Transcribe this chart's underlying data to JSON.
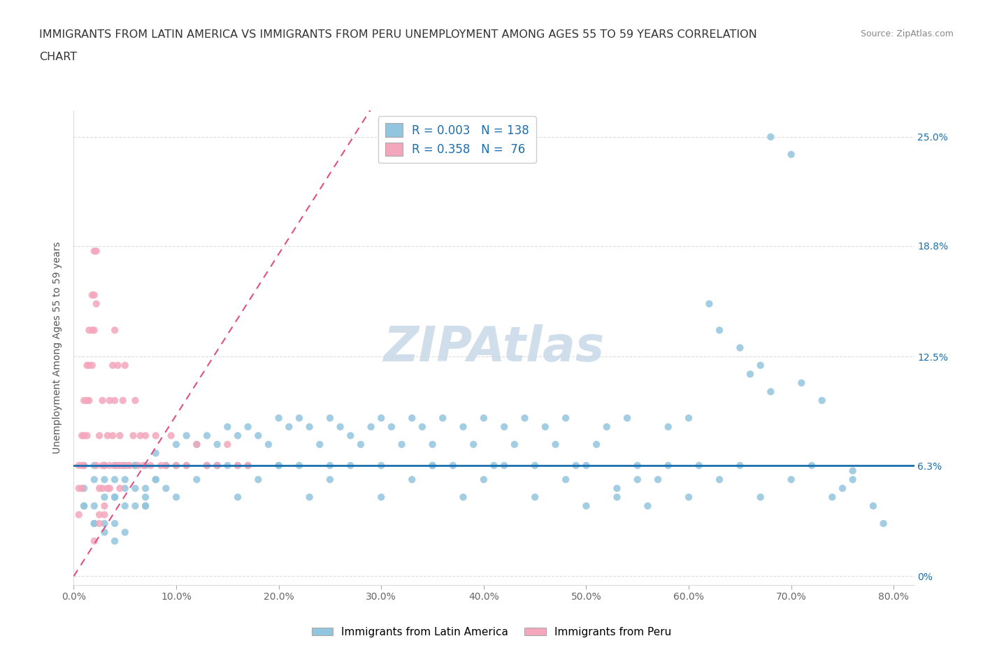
{
  "title_line1": "IMMIGRANTS FROM LATIN AMERICA VS IMMIGRANTS FROM PERU UNEMPLOYMENT AMONG AGES 55 TO 59 YEARS CORRELATION",
  "title_line2": "CHART",
  "source_text": "Source: ZipAtlas.com",
  "ylabel": "Unemployment Among Ages 55 to 59 years",
  "xlim": [
    0.0,
    0.82
  ],
  "ylim": [
    -0.005,
    0.265
  ],
  "yticks": [
    0.0,
    0.063,
    0.125,
    0.188,
    0.25
  ],
  "ytick_labels": [
    "0%",
    "6.3%",
    "12.5%",
    "18.8%",
    "25.0%"
  ],
  "xticks": [
    0.0,
    0.1,
    0.2,
    0.3,
    0.4,
    0.5,
    0.6,
    0.7,
    0.8
  ],
  "xtick_labels": [
    "0.0%",
    "10.0%",
    "20.0%",
    "30.0%",
    "40.0%",
    "50.0%",
    "60.0%",
    "70.0%",
    "80.0%"
  ],
  "color_blue": "#92c5de",
  "color_pink": "#f4a6bc",
  "color_line_blue": "#1a6faf",
  "color_line_pink": "#e05080",
  "legend_R1": "0.003",
  "legend_N1": "138",
  "legend_R2": "0.358",
  "legend_N2": "76",
  "watermark": "ZIPAtlas",
  "watermark_color": "#c8d8e8",
  "blue_line_y": 0.063,
  "pink_line_x0": 0.0,
  "pink_line_y0": 0.0,
  "pink_line_x1": 0.18,
  "pink_line_y1": 0.165,
  "blue_scatter_x": [
    0.01,
    0.01,
    0.01,
    0.02,
    0.02,
    0.02,
    0.02,
    0.03,
    0.03,
    0.03,
    0.03,
    0.04,
    0.04,
    0.04,
    0.04,
    0.05,
    0.05,
    0.05,
    0.06,
    0.06,
    0.06,
    0.07,
    0.07,
    0.07,
    0.08,
    0.08,
    0.09,
    0.09,
    0.1,
    0.1,
    0.11,
    0.11,
    0.12,
    0.13,
    0.13,
    0.14,
    0.14,
    0.15,
    0.15,
    0.16,
    0.16,
    0.17,
    0.17,
    0.18,
    0.19,
    0.2,
    0.2,
    0.21,
    0.22,
    0.22,
    0.23,
    0.24,
    0.25,
    0.25,
    0.26,
    0.27,
    0.28,
    0.29,
    0.3,
    0.3,
    0.31,
    0.32,
    0.33,
    0.34,
    0.35,
    0.35,
    0.36,
    0.37,
    0.38,
    0.39,
    0.4,
    0.41,
    0.42,
    0.43,
    0.44,
    0.45,
    0.46,
    0.47,
    0.48,
    0.49,
    0.5,
    0.51,
    0.52,
    0.53,
    0.54,
    0.55,
    0.56,
    0.57,
    0.58,
    0.6,
    0.61,
    0.62,
    0.63,
    0.65,
    0.67,
    0.68,
    0.7,
    0.71,
    0.73,
    0.75,
    0.76,
    0.78,
    0.79,
    0.01,
    0.02,
    0.03,
    0.04,
    0.05,
    0.06,
    0.07,
    0.03,
    0.04,
    0.05,
    0.06,
    0.07,
    0.08,
    0.09,
    0.1,
    0.12,
    0.14,
    0.16,
    0.18,
    0.2,
    0.23,
    0.25,
    0.27,
    0.3,
    0.33,
    0.35,
    0.38,
    0.4,
    0.42,
    0.45,
    0.48,
    0.5,
    0.53,
    0.55,
    0.58,
    0.6,
    0.63,
    0.65,
    0.67,
    0.7,
    0.72,
    0.74,
    0.76,
    0.66,
    0.68
  ],
  "blue_scatter_y": [
    0.063,
    0.05,
    0.04,
    0.063,
    0.055,
    0.04,
    0.03,
    0.063,
    0.055,
    0.045,
    0.03,
    0.063,
    0.055,
    0.045,
    0.03,
    0.063,
    0.05,
    0.04,
    0.063,
    0.05,
    0.04,
    0.063,
    0.05,
    0.04,
    0.07,
    0.055,
    0.063,
    0.05,
    0.075,
    0.063,
    0.08,
    0.063,
    0.075,
    0.08,
    0.063,
    0.075,
    0.063,
    0.085,
    0.063,
    0.08,
    0.063,
    0.085,
    0.063,
    0.08,
    0.075,
    0.09,
    0.063,
    0.085,
    0.09,
    0.063,
    0.085,
    0.075,
    0.09,
    0.063,
    0.085,
    0.08,
    0.075,
    0.085,
    0.09,
    0.063,
    0.085,
    0.075,
    0.09,
    0.085,
    0.063,
    0.075,
    0.09,
    0.063,
    0.085,
    0.075,
    0.09,
    0.063,
    0.085,
    0.075,
    0.09,
    0.063,
    0.085,
    0.075,
    0.09,
    0.063,
    0.04,
    0.075,
    0.085,
    0.05,
    0.09,
    0.063,
    0.04,
    0.055,
    0.085,
    0.09,
    0.063,
    0.155,
    0.14,
    0.13,
    0.12,
    0.25,
    0.24,
    0.11,
    0.1,
    0.05,
    0.06,
    0.04,
    0.03,
    0.04,
    0.03,
    0.025,
    0.02,
    0.025,
    0.063,
    0.04,
    0.063,
    0.045,
    0.055,
    0.063,
    0.045,
    0.055,
    0.063,
    0.045,
    0.055,
    0.063,
    0.045,
    0.055,
    0.063,
    0.045,
    0.055,
    0.063,
    0.045,
    0.055,
    0.063,
    0.045,
    0.055,
    0.063,
    0.045,
    0.055,
    0.063,
    0.045,
    0.055,
    0.063,
    0.045,
    0.055,
    0.063,
    0.045,
    0.055,
    0.063,
    0.045,
    0.055,
    0.115,
    0.105
  ],
  "pink_scatter_x": [
    0.005,
    0.008,
    0.01,
    0.013,
    0.015,
    0.018,
    0.02,
    0.022,
    0.025,
    0.028,
    0.005,
    0.008,
    0.01,
    0.013,
    0.015,
    0.018,
    0.02,
    0.022,
    0.025,
    0.028,
    0.005,
    0.008,
    0.01,
    0.013,
    0.015,
    0.018,
    0.02,
    0.022,
    0.025,
    0.028,
    0.03,
    0.033,
    0.035,
    0.038,
    0.04,
    0.043,
    0.045,
    0.048,
    0.05,
    0.053,
    0.03,
    0.033,
    0.035,
    0.038,
    0.04,
    0.043,
    0.045,
    0.048,
    0.055,
    0.058,
    0.06,
    0.063,
    0.065,
    0.068,
    0.07,
    0.075,
    0.08,
    0.085,
    0.09,
    0.095,
    0.1,
    0.11,
    0.12,
    0.13,
    0.14,
    0.15,
    0.16,
    0.17,
    0.02,
    0.025,
    0.03,
    0.035,
    0.04,
    0.045
  ],
  "pink_scatter_y": [
    0.063,
    0.08,
    0.1,
    0.12,
    0.14,
    0.16,
    0.185,
    0.063,
    0.08,
    0.1,
    0.05,
    0.063,
    0.08,
    0.1,
    0.12,
    0.14,
    0.16,
    0.185,
    0.05,
    0.063,
    0.035,
    0.05,
    0.063,
    0.08,
    0.1,
    0.12,
    0.14,
    0.155,
    0.035,
    0.05,
    0.063,
    0.08,
    0.1,
    0.12,
    0.14,
    0.063,
    0.08,
    0.1,
    0.12,
    0.063,
    0.035,
    0.05,
    0.063,
    0.08,
    0.1,
    0.12,
    0.05,
    0.063,
    0.063,
    0.08,
    0.1,
    0.063,
    0.08,
    0.063,
    0.08,
    0.063,
    0.08,
    0.063,
    0.063,
    0.08,
    0.063,
    0.063,
    0.075,
    0.063,
    0.063,
    0.075,
    0.063,
    0.063,
    0.02,
    0.03,
    0.04,
    0.05,
    0.063,
    0.063
  ]
}
